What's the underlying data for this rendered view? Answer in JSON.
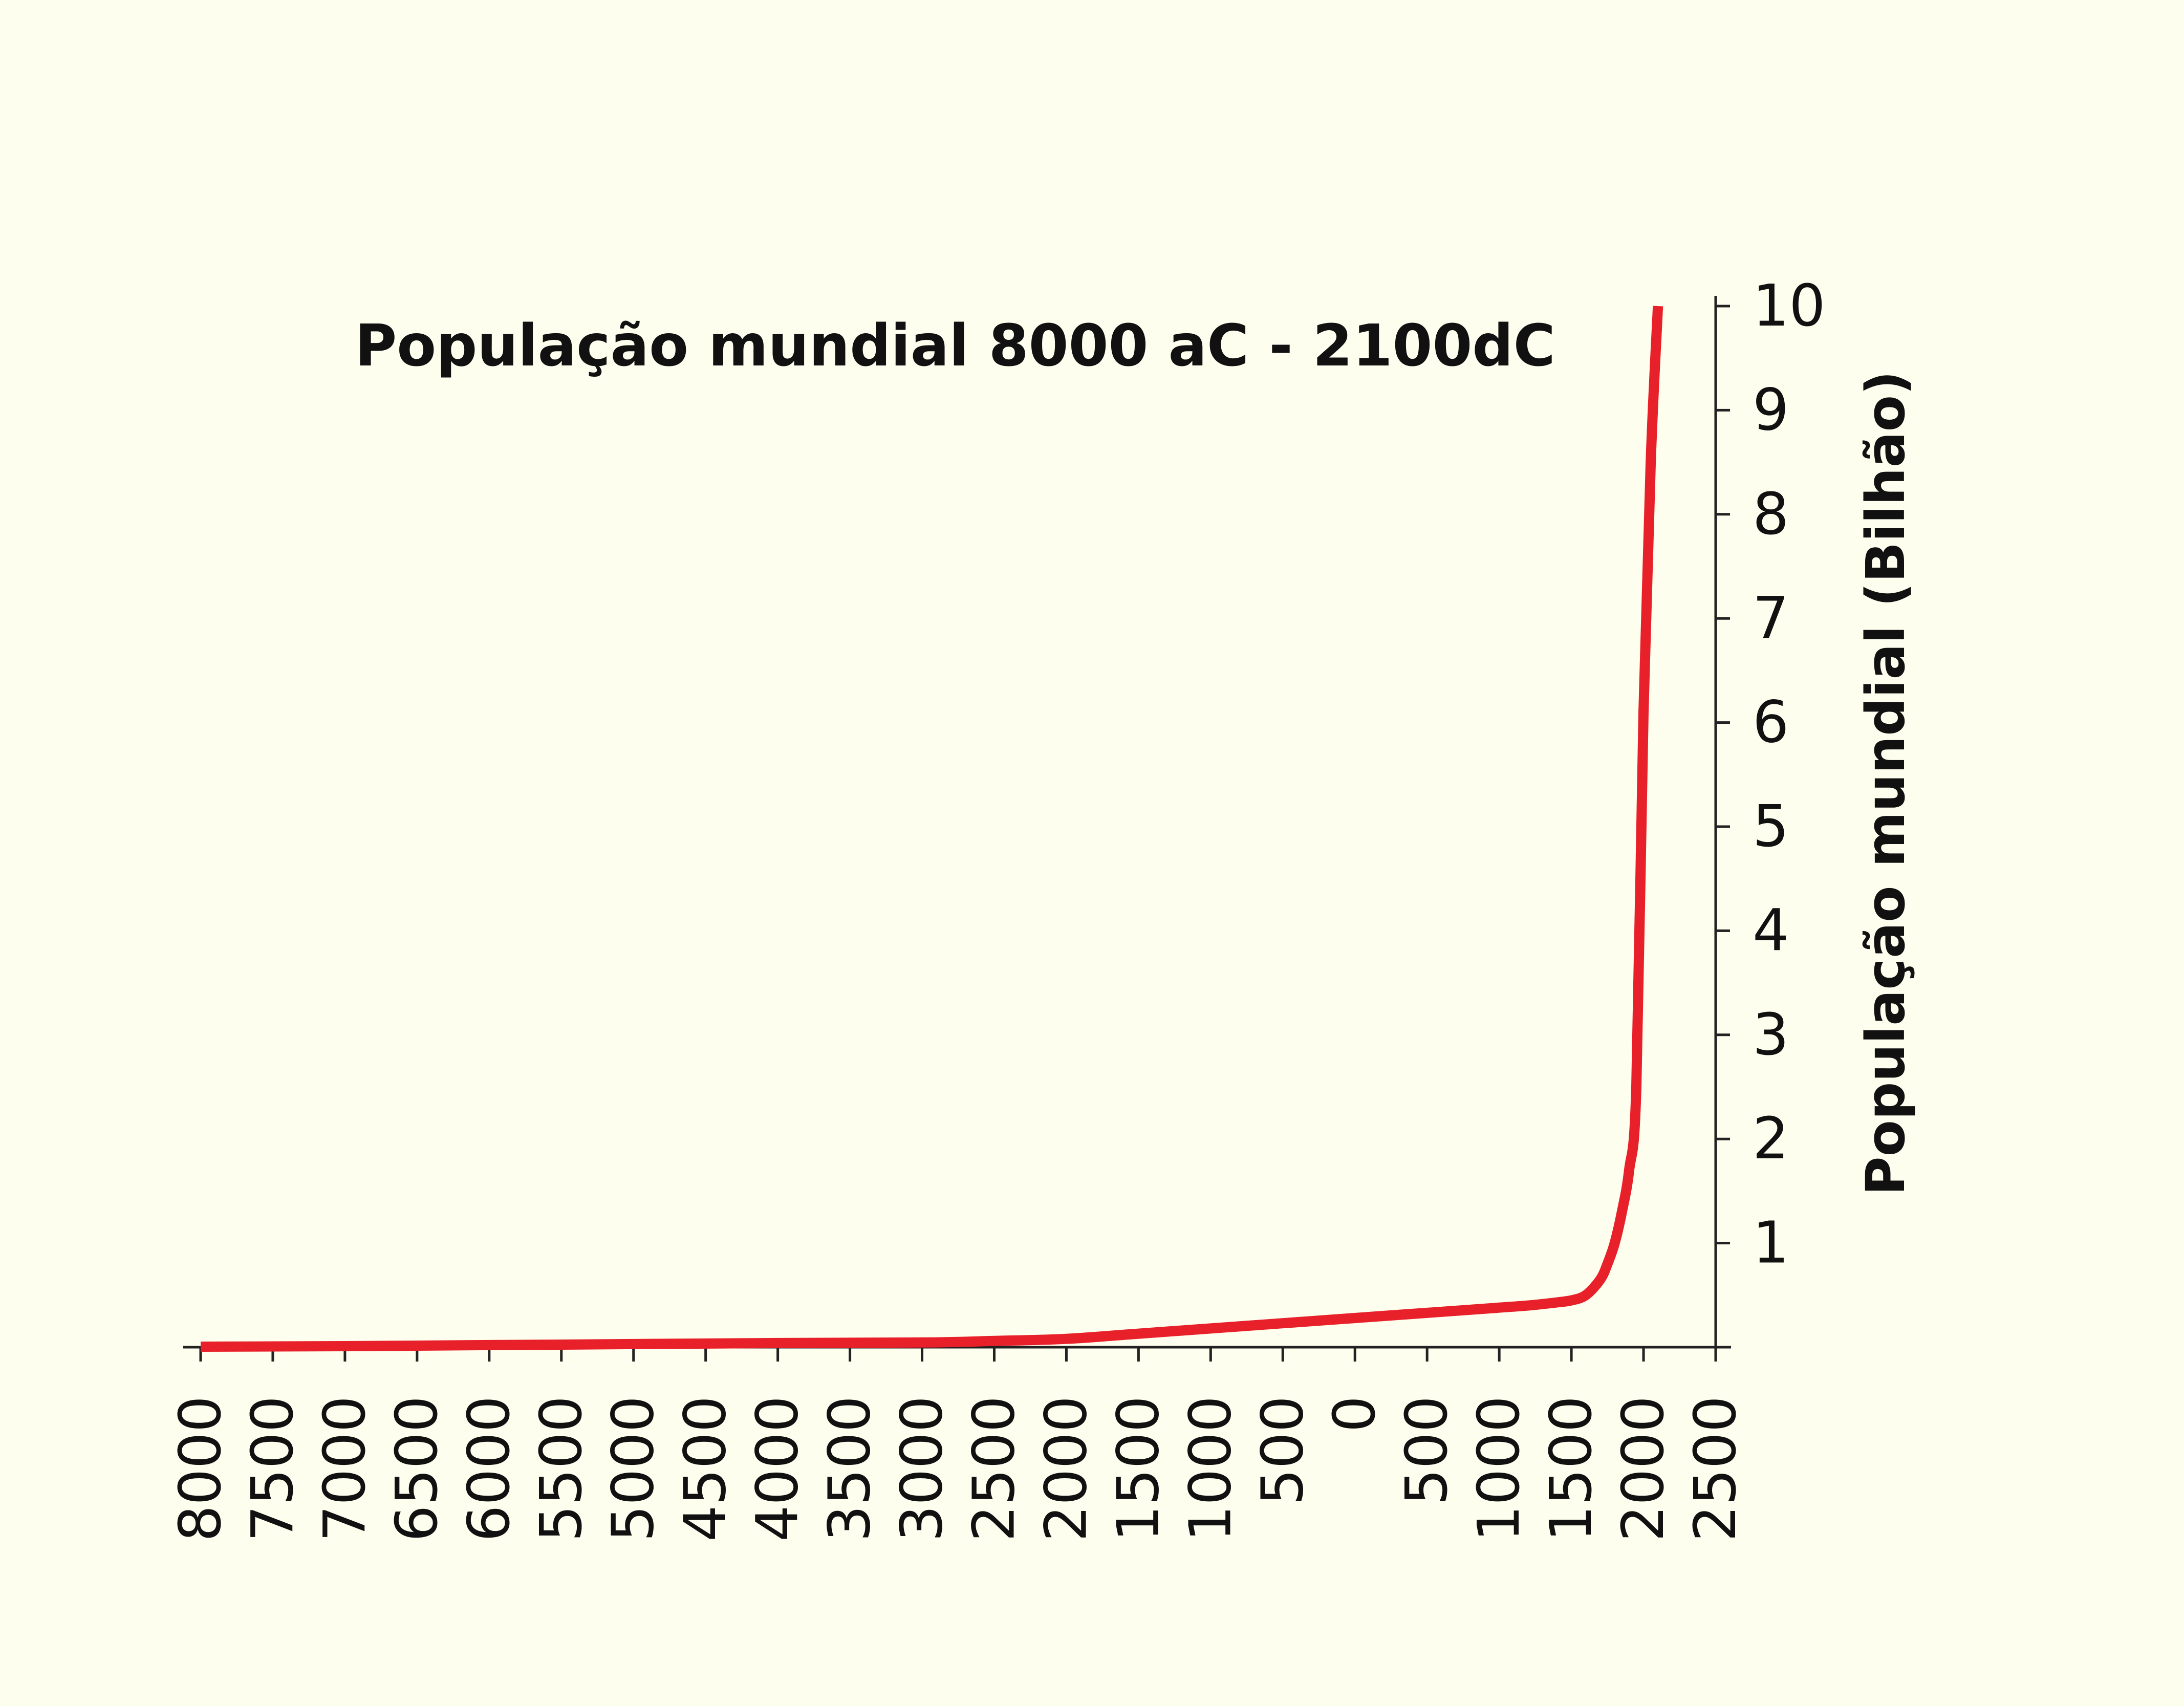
{
  "chart_data": {
    "type": "line",
    "title": "População mundial 8000 aC - 2100dC",
    "ylabel": "População mundial (Bilhão)",
    "xlabel": "",
    "x_tick_labels": [
      "8000",
      "7500",
      "7000",
      "6500",
      "6000",
      "5500",
      "5000",
      "4500",
      "4000",
      "3500",
      "3000",
      "2500",
      "2000",
      "1500",
      "1000",
      "500",
      "0",
      "500",
      "1000",
      "1500",
      "2000",
      "2500"
    ],
    "x_ticks": [
      -8000,
      -7500,
      -7000,
      -6500,
      -6000,
      -5500,
      -5000,
      -4500,
      -4000,
      -3500,
      -3000,
      -2500,
      -2000,
      -1500,
      -1000,
      -500,
      0,
      500,
      1000,
      1500,
      2000,
      2500
    ],
    "y_tick_labels": [
      "1",
      "2",
      "3",
      "4",
      "5",
      "6",
      "7",
      "8",
      "9",
      "10"
    ],
    "y_ticks": [
      1,
      2,
      3,
      4,
      5,
      6,
      7,
      8,
      9,
      10
    ],
    "xlim": [
      -8000,
      2500
    ],
    "ylim": [
      0,
      10
    ],
    "y_axis_position": "right",
    "grid": false,
    "series": [
      {
        "color": "#e8202a",
        "x": [
          -8000,
          -7000,
          -6000,
          -5000,
          -4000,
          -3000,
          -2500,
          -2000,
          -1500,
          -1000,
          -500,
          0,
          500,
          1000,
          1200,
          1400,
          1500,
          1600,
          1700,
          1750,
          1800,
          1850,
          1900,
          1950,
          2000,
          2050,
          2100
        ],
        "y": [
          0.005,
          0.01,
          0.02,
          0.03,
          0.04,
          0.045,
          0.06,
          0.08,
          0.13,
          0.18,
          0.23,
          0.28,
          0.33,
          0.38,
          0.4,
          0.43,
          0.45,
          0.5,
          0.65,
          0.8,
          1.0,
          1.3,
          1.7,
          2.5,
          6.1,
          8.5,
          10.0
        ]
      }
    ]
  }
}
